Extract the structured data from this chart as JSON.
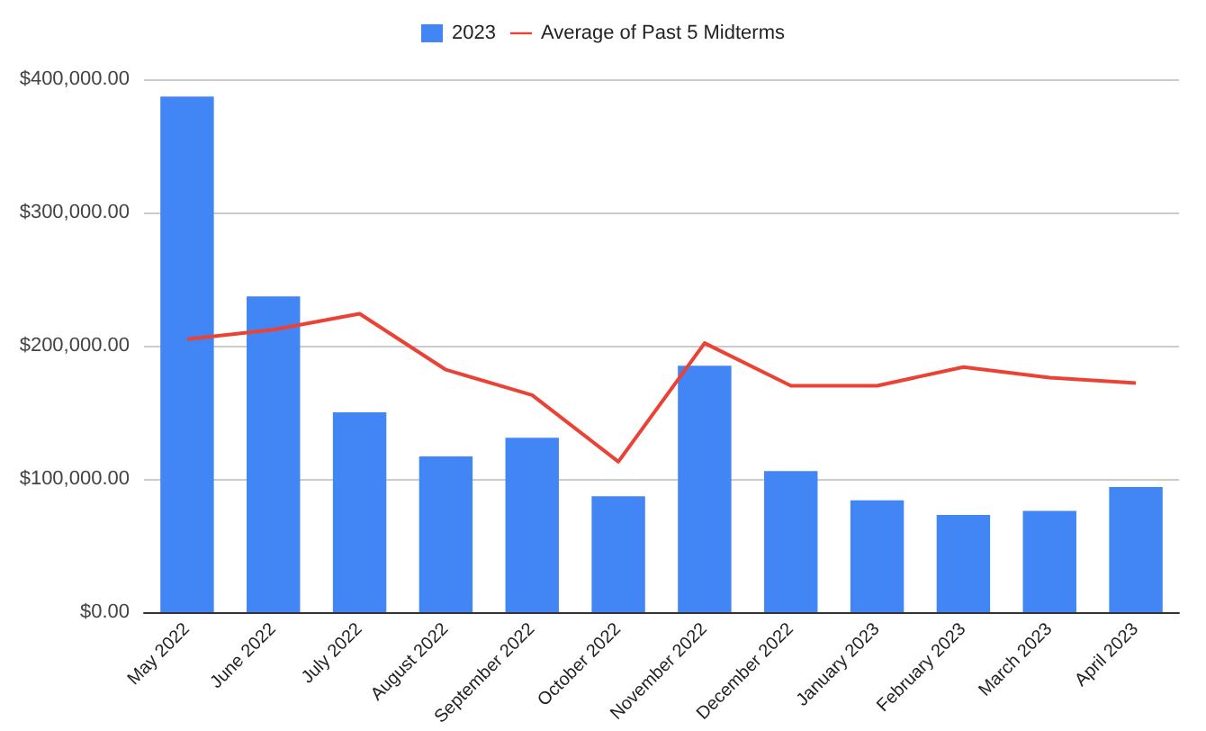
{
  "chart_data": {
    "type": "bar",
    "categories": [
      "May 2022",
      "June 2022",
      "July 2022",
      "August 2022",
      "September 2022",
      "October 2022",
      "November 2022",
      "December 2022",
      "January 2023",
      "February 2023",
      "March 2023",
      "April 2023"
    ],
    "series": [
      {
        "name": "2023",
        "color": "#4285f4",
        "values": [
          387000,
          237000,
          150000,
          117000,
          131000,
          87000,
          185000,
          106000,
          84000,
          73000,
          76000,
          94000
        ]
      },
      {
        "name": "Average of Past 5 Midterms",
        "type": "line",
        "color": "#ea4335",
        "values": [
          205000,
          212000,
          224000,
          182000,
          163000,
          113000,
          202000,
          170000,
          170000,
          184000,
          176000,
          172000
        ]
      }
    ],
    "ylim": [
      0,
      400000
    ],
    "yticks": [
      {
        "value": 0,
        "label": "$0.00"
      },
      {
        "value": 100000,
        "label": "$100,000.00"
      },
      {
        "value": 200000,
        "label": "$200,000.00"
      },
      {
        "value": 300000,
        "label": "$300,000.00"
      },
      {
        "value": 400000,
        "label": "$400,000.00"
      }
    ],
    "grid": "y",
    "legend": "top",
    "marker": "none"
  }
}
